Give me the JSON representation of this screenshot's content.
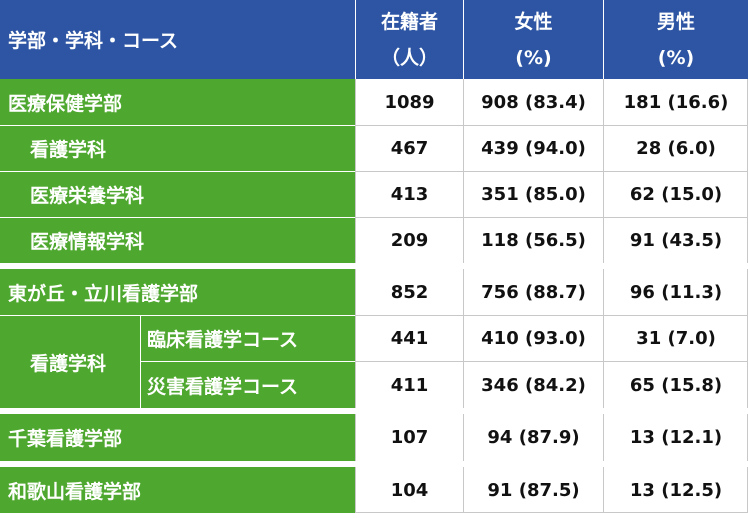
{
  "header": {
    "col0": "学部・学科・コース",
    "col1_line1": "在籍者",
    "col1_line2": "（人）",
    "col2_line1": "女性",
    "col2_line2": "(%)",
    "col3_line1": "男性",
    "col3_line2": "(%)"
  },
  "rows": [
    {
      "label": "医療保健学部",
      "total": "1089",
      "female": "908 (83.4)",
      "male": "181 (16.6)"
    },
    {
      "label": "看護学科",
      "total": "467",
      "female": "439 (94.0)",
      "male": "28 (6.0)"
    },
    {
      "label": "医療栄養学科",
      "total": "413",
      "female": "351 (85.0)",
      "male": "62 (15.0)"
    },
    {
      "label": "医療情報学科",
      "total": "209",
      "female": "118 (56.5)",
      "male": "91 (43.5)"
    },
    {
      "label": "東が丘・立川看護学部",
      "total": "852",
      "female": "756 (88.7)",
      "male": "96 (11.3)"
    },
    {
      "label": "臨床看護学コース",
      "total": "441",
      "female": "410 (93.0)",
      "male": "31 (7.0)"
    },
    {
      "label": "災害看護学コース",
      "total": "411",
      "female": "346 (84.2)",
      "male": "65 (15.8)"
    },
    {
      "label": "千葉看護学部",
      "total": "107",
      "female": "94 (87.9)",
      "male": "13 (12.1)"
    },
    {
      "label": "和歌山看護学部",
      "total": "104",
      "female": "91 (87.5)",
      "male": "13 (12.5)"
    }
  ],
  "merged_label": "看護学科"
}
